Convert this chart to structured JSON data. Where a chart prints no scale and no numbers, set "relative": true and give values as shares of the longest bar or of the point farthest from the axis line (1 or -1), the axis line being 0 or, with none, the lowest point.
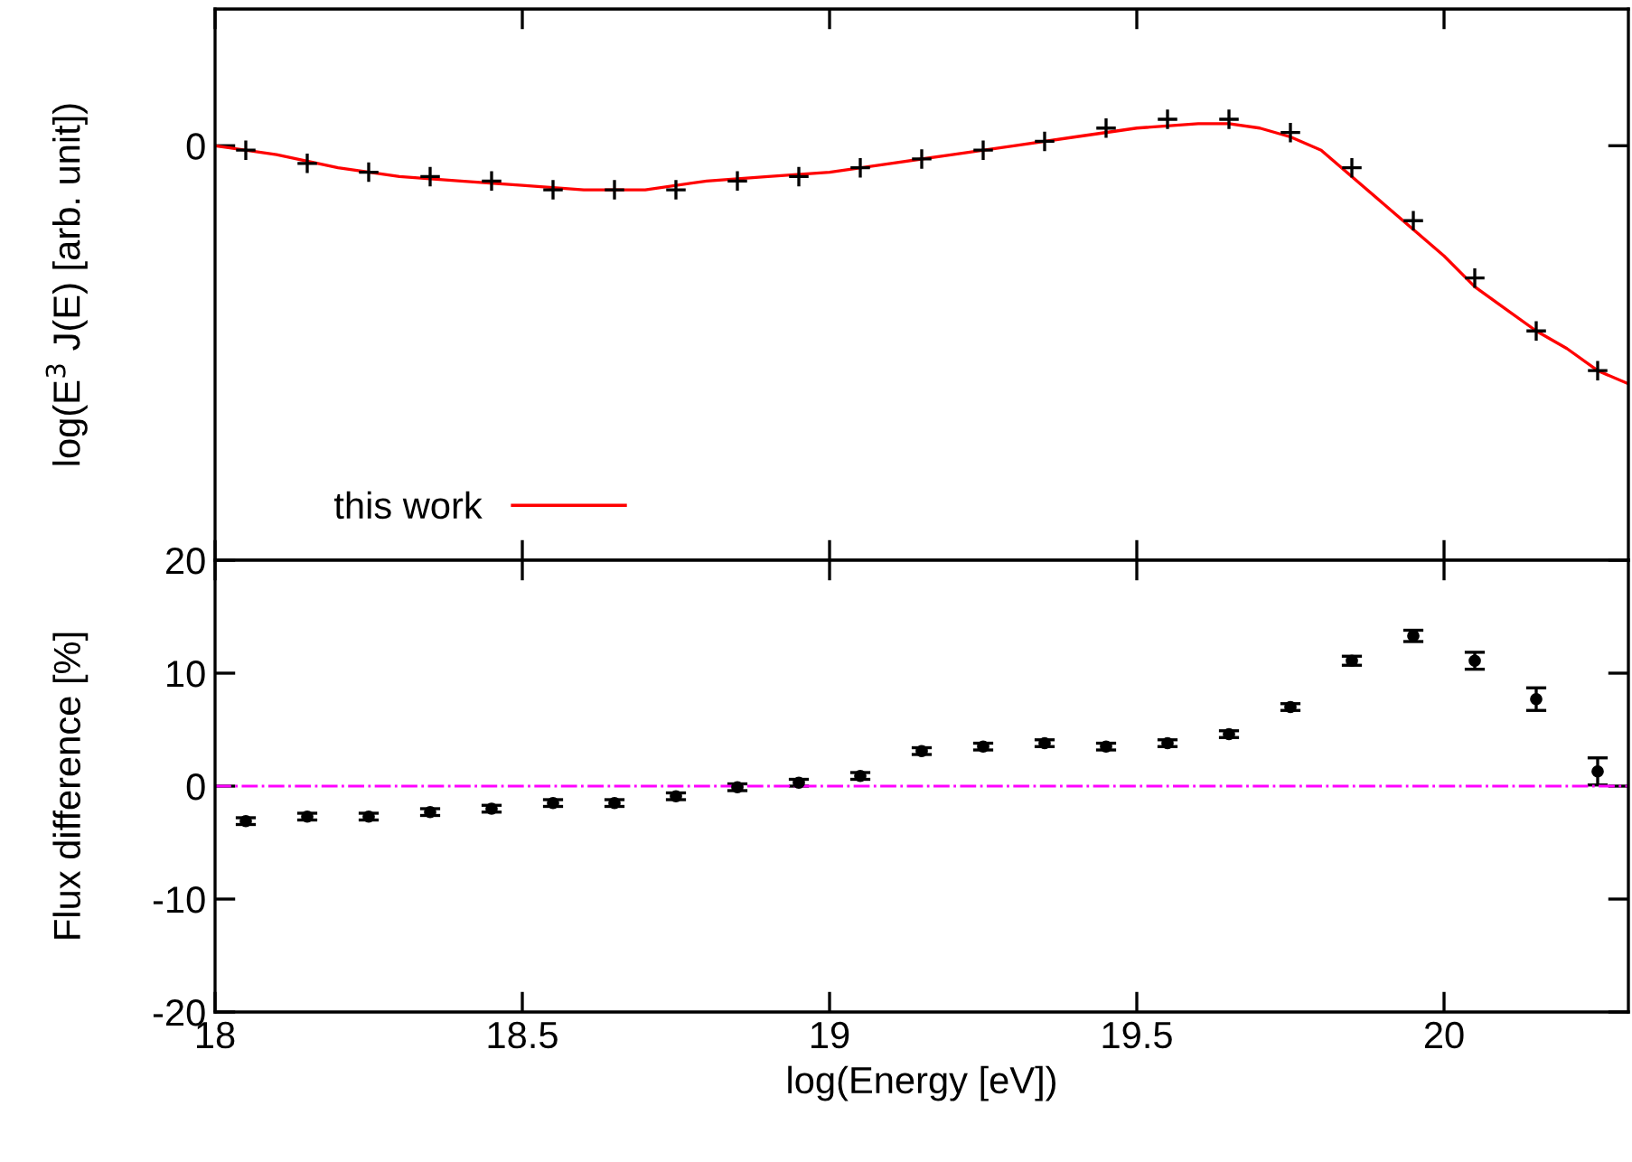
{
  "chart_data": [
    {
      "type": "line",
      "relative": true,
      "ylabel": "log(E$^{3}$ J(E) [arb. unit])",
      "xlim": [
        18,
        20.3
      ],
      "xticks": [
        {
          "value": 18,
          "label": null
        },
        {
          "value": 18.5,
          "label": null
        },
        {
          "value": 19,
          "label": null
        },
        {
          "value": 19.5,
          "label": null
        },
        {
          "value": 20,
          "label": null
        }
      ],
      "tick_labels": "y",
      "legend": "bottom left",
      "annotations": [
        "0"
      ],
      "series": [
        {
          "name": "this work",
          "color": "#ff0000",
          "x": [
            18,
            18.1,
            18.2,
            18.3,
            18.4,
            18.5,
            18.6,
            18.7,
            18.8,
            18.9,
            19.0,
            19.1,
            19.2,
            19.3,
            19.4,
            19.5,
            19.6,
            19.65,
            19.7,
            19.75,
            19.8,
            19.85,
            19.9,
            19.95,
            20.0,
            20.05,
            20.1,
            20.15,
            20.2,
            20.25,
            20.3
          ],
          "values": [
            0.94,
            0.92,
            0.89,
            0.87,
            0.86,
            0.85,
            0.84,
            0.84,
            0.86,
            0.87,
            0.88,
            0.9,
            0.92,
            0.94,
            0.96,
            0.98,
            0.99,
            0.99,
            0.98,
            0.96,
            0.93,
            0.87,
            0.81,
            0.75,
            0.69,
            0.62,
            0.57,
            0.52,
            0.48,
            0.43,
            0.4
          ]
        },
        {
          "type": "scatter",
          "marker": "cross",
          "color": "#000000",
          "x": [
            18.05,
            18.15,
            18.25,
            18.35,
            18.45,
            18.55,
            18.65,
            18.75,
            18.85,
            18.95,
            19.05,
            19.15,
            19.25,
            19.35,
            19.45,
            19.55,
            19.65,
            19.75,
            19.85,
            19.95,
            20.05,
            20.15,
            20.25
          ],
          "values": [
            0.93,
            0.9,
            0.88,
            0.87,
            0.86,
            0.84,
            0.84,
            0.84,
            0.86,
            0.87,
            0.89,
            0.91,
            0.93,
            0.95,
            0.98,
            1.0,
            1.0,
            0.97,
            0.89,
            0.77,
            0.64,
            0.52,
            0.43
          ]
        }
      ]
    },
    {
      "type": "scatter",
      "xlabel": "log(Energy [eV])",
      "ylabel": "Flux difference [%]",
      "xlim": [
        18,
        20.3
      ],
      "xticks": [
        18,
        18.5,
        19,
        19.5,
        20
      ],
      "ylim": [
        -20,
        20
      ],
      "yticks": [
        -20,
        -10,
        0,
        10,
        20
      ],
      "marker": "circle",
      "ref_lines": [
        {
          "axis": "y",
          "value": 0,
          "color": "#ff00ff",
          "line_style": "dashdot"
        }
      ],
      "series": [
        {
          "color": "#000000",
          "x": [
            18.05,
            18.15,
            18.25,
            18.35,
            18.45,
            18.55,
            18.65,
            18.75,
            18.85,
            18.95,
            19.05,
            19.15,
            19.25,
            19.35,
            19.45,
            19.55,
            19.65,
            19.75,
            19.85,
            19.95,
            20.05,
            20.15,
            20.25
          ],
          "values": [
            -3.1,
            -2.7,
            -2.7,
            -2.3,
            -2.0,
            -1.5,
            -1.5,
            -0.9,
            -0.1,
            0.3,
            0.9,
            3.1,
            3.5,
            3.8,
            3.5,
            3.8,
            4.6,
            7.0,
            11.1,
            13.3,
            11.1,
            7.7,
            1.3
          ],
          "errors": [
            0.3,
            0.3,
            0.3,
            0.3,
            0.3,
            0.3,
            0.3,
            0.3,
            0.3,
            0.3,
            0.3,
            0.3,
            0.3,
            0.3,
            0.3,
            0.3,
            0.3,
            0.3,
            0.4,
            0.5,
            0.75,
            1.0,
            1.2
          ]
        }
      ]
    }
  ]
}
